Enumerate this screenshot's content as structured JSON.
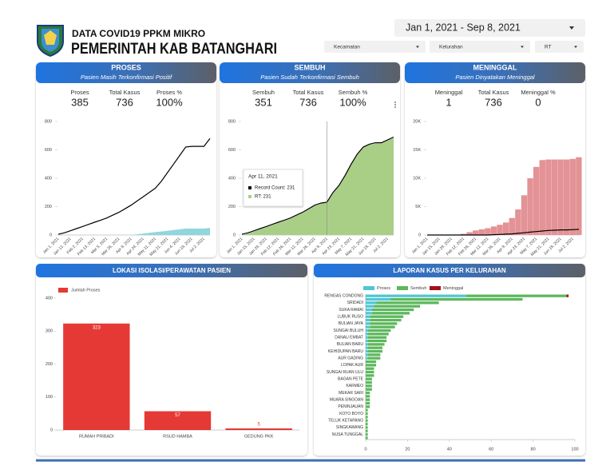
{
  "header": {
    "title": "DATA COVID19 PPKM MIKRO",
    "subtitle": "PEMERINTAH KAB BATANGHARI",
    "date_range": "Jan 1, 2021 - Sep 8, 2021",
    "filters": [
      "Kecamatan",
      "Kelurahan",
      "RT"
    ]
  },
  "cards": [
    {
      "title": "PROSES",
      "subtitle": "Pasien Masih Terkonfirmasi Positif",
      "kpis": [
        {
          "label": "Proses",
          "value": "385"
        },
        {
          "label": "Total Kasus",
          "value": "736"
        },
        {
          "label": "Proses %",
          "value": "100%"
        }
      ]
    },
    {
      "title": "SEMBUH",
      "subtitle": "Pasien Sudah Terkonfirmasi Sembuh",
      "kpis": [
        {
          "label": "Sembuh",
          "value": "351"
        },
        {
          "label": "Total Kasus",
          "value": "736"
        },
        {
          "label": "Sembuh %",
          "value": "100%"
        }
      ]
    },
    {
      "title": "MENINGGAL",
      "subtitle": "Pasien Dinyatakan Meninggal",
      "kpis": [
        {
          "label": "Meninggal",
          "value": "1"
        },
        {
          "label": "Total Kasus",
          "value": "736"
        },
        {
          "label": "Meninggal %",
          "value": "0"
        }
      ]
    }
  ],
  "chart_data": [
    {
      "type": "line",
      "categories": [
        "Jan 1, 2021",
        null,
        "Jan 12, 2021",
        null,
        "Feb 2, 2021",
        null,
        "Feb 13, 2021",
        null,
        "Mar 5, 2021",
        null,
        "Mar 26, 2021",
        null,
        "Apr 9, 2021",
        null,
        "Apr 24, 2021",
        null,
        "May 11, 2021",
        null,
        "May 21, 2021",
        null,
        "Jun 4, 2021",
        null,
        "Jun 19, 2021",
        null,
        "Jul 2, 2021",
        null
      ],
      "ylim": [
        0,
        800
      ],
      "yticks": [
        0,
        200,
        400,
        600,
        800
      ],
      "series": [
        {
          "type": "area",
          "color": "#8fd6df",
          "values": [
            0,
            0,
            0,
            0,
            0,
            0,
            0,
            0,
            0,
            0,
            0,
            0,
            0,
            5,
            10,
            15,
            20,
            25,
            30,
            35,
            40,
            45,
            45,
            45,
            45,
            50
          ]
        },
        {
          "type": "line",
          "color": "#000000",
          "values": [
            5,
            15,
            30,
            45,
            60,
            75,
            90,
            105,
            120,
            140,
            160,
            185,
            210,
            240,
            270,
            300,
            330,
            380,
            440,
            500,
            560,
            620,
            625,
            625,
            625,
            680
          ]
        }
      ]
    },
    {
      "type": "line",
      "categories": [
        "Jan 1, 2021",
        null,
        "Jan 15, 2021",
        null,
        "Jan 29, 2021",
        null,
        "Feb 12, 2021",
        null,
        "Feb 26, 2021",
        null,
        "Mar 12, 2021",
        null,
        "Mar 26, 2021",
        null,
        "Apr 9, 2021",
        null,
        "Apr 23, 2021",
        null,
        "May 7, 2021",
        null,
        "May 21, 2021",
        null,
        "Jun 18, 2021",
        null,
        "Jul 2, 2021",
        null
      ],
      "ylim": [
        0,
        800
      ],
      "yticks": [
        0,
        200,
        400,
        600,
        800
      ],
      "series": [
        {
          "type": "area",
          "color": "#a9cf86",
          "values": [
            0,
            10,
            25,
            40,
            55,
            70,
            85,
            100,
            115,
            135,
            155,
            180,
            205,
            220,
            231,
            295,
            345,
            415,
            495,
            565,
            615,
            635,
            645,
            645,
            665,
            685
          ]
        },
        {
          "type": "line",
          "color": "#000000",
          "values": [
            5,
            15,
            30,
            45,
            60,
            75,
            90,
            105,
            120,
            140,
            160,
            185,
            210,
            225,
            231,
            300,
            350,
            420,
            500,
            570,
            620,
            640,
            650,
            650,
            670,
            690
          ]
        }
      ],
      "tooltip": {
        "title": "Apr 11, 2021",
        "lines": [
          "Record Count: 231",
          "RT: 231"
        ]
      }
    },
    {
      "type": "line",
      "categories": [
        "Jan 1, 2021",
        null,
        "Jan 15, 2021",
        null,
        "Jan 29, 2021",
        null,
        "Feb 12, 2021",
        null,
        "Feb 26, 2021",
        null,
        "Mar 12, 2021",
        null,
        "Mar 26, 2021",
        null,
        "Apr 9, 2021",
        null,
        "Apr 23, 2021",
        null,
        "May 7, 2021",
        null,
        "May 21, 2021",
        null,
        "Jun 18, 2021",
        null,
        "Jul 2, 2021",
        null
      ],
      "ylim": [
        0,
        20000
      ],
      "yticks": [
        0,
        {
          "value": 5000,
          "label": "5K"
        },
        {
          "value": 10000,
          "label": "10K"
        },
        {
          "value": 15000,
          "label": "15K"
        },
        {
          "value": 20000,
          "label": "20K"
        }
      ],
      "series": [
        {
          "type": "bar",
          "color": "#e39295",
          "values": [
            0,
            0,
            0,
            0,
            0,
            0,
            200,
            500,
            800,
            1000,
            1200,
            1500,
            1800,
            2200,
            3000,
            4500,
            7000,
            10000,
            12000,
            13200,
            13300,
            13300,
            13300,
            13300,
            13400,
            13700
          ]
        },
        {
          "type": "line",
          "color": "#000000",
          "values": [
            0,
            0,
            0,
            0,
            0,
            0,
            0,
            0,
            0,
            0,
            0,
            50,
            100,
            150,
            200,
            300,
            400,
            500,
            600,
            700,
            800,
            850,
            900,
            900,
            950,
            1000
          ]
        }
      ]
    },
    {
      "type": "bar",
      "title": "LOKASI ISOLASI/PERAWATAN PASIEN",
      "categories": [
        "RUMAH PRIBADI",
        "RSUD HAMBA",
        "GEDUNG PKK"
      ],
      "ylim": [
        0,
        400
      ],
      "yticks": [
        0,
        100,
        200,
        300,
        400
      ],
      "series": [
        {
          "name": "Jumlah Proses",
          "color": "#e53935",
          "values": [
            323,
            57,
            5
          ]
        }
      ]
    },
    {
      "type": "hbar",
      "title": "LAPORAN KASUS PER KELURAHAN",
      "stacked": true,
      "categories": [
        "RENGAS CONDONG",
        null,
        "SRIDADI",
        null,
        "SUKA RAMAI",
        null,
        "LUBUK RUSO",
        null,
        "BULIAN JAYA",
        null,
        "SUNGAI BULUH",
        null,
        "DANAU EMBAT",
        null,
        "BULIAN BARU",
        null,
        "KEHIDUPAN BARU",
        null,
        "AUR GADING",
        null,
        "LOPAK AUR",
        null,
        "SUNGAI RUAN ULU",
        null,
        "BAGAN PETE",
        null,
        "KARMEO",
        null,
        "MEKAR SARI",
        null,
        "MUARA SINGOAN",
        null,
        "PENINJAUAN",
        null,
        "KOTO BOYO",
        null,
        "TELUK KETAPANG",
        null,
        "SINGKAWANG",
        null,
        "NUSA TUNGGAL",
        null
      ],
      "xlim": [
        0,
        100
      ],
      "xticks": [
        0,
        20,
        40,
        60,
        80,
        100
      ],
      "series": [
        {
          "name": "Proses",
          "color": "#4fc6d4",
          "values": [
            48,
            12,
            5,
            4,
            3,
            3,
            2,
            2,
            2,
            2,
            1,
            1,
            1,
            1,
            1,
            1,
            1,
            1,
            1,
            0,
            0,
            0,
            0,
            0,
            0,
            0,
            0,
            0,
            0,
            0,
            0,
            0,
            0,
            0,
            0,
            0,
            0,
            0,
            0,
            0,
            0,
            0
          ]
        },
        {
          "name": "Sembuh",
          "color": "#5cb85c",
          "values": [
            48,
            63,
            30,
            22,
            20,
            18,
            16,
            15,
            13,
            12,
            11,
            10,
            9,
            9,
            8,
            7,
            7,
            6,
            6,
            5,
            5,
            4,
            4,
            4,
            3,
            3,
            3,
            3,
            2,
            2,
            2,
            2,
            2,
            1,
            1,
            1,
            1,
            1,
            1,
            1,
            1,
            1
          ]
        },
        {
          "name": "Meninggal",
          "color": "#a50f15",
          "values": [
            1,
            0,
            0,
            0,
            0,
            0,
            0,
            0,
            0,
            0,
            0,
            0,
            0,
            0,
            0,
            0,
            0,
            0,
            0,
            0,
            0,
            0,
            0,
            0,
            0,
            0,
            0,
            0,
            0,
            0,
            0,
            0,
            0,
            0,
            0,
            0,
            0,
            0,
            0,
            0,
            0,
            0
          ]
        }
      ]
    }
  ]
}
